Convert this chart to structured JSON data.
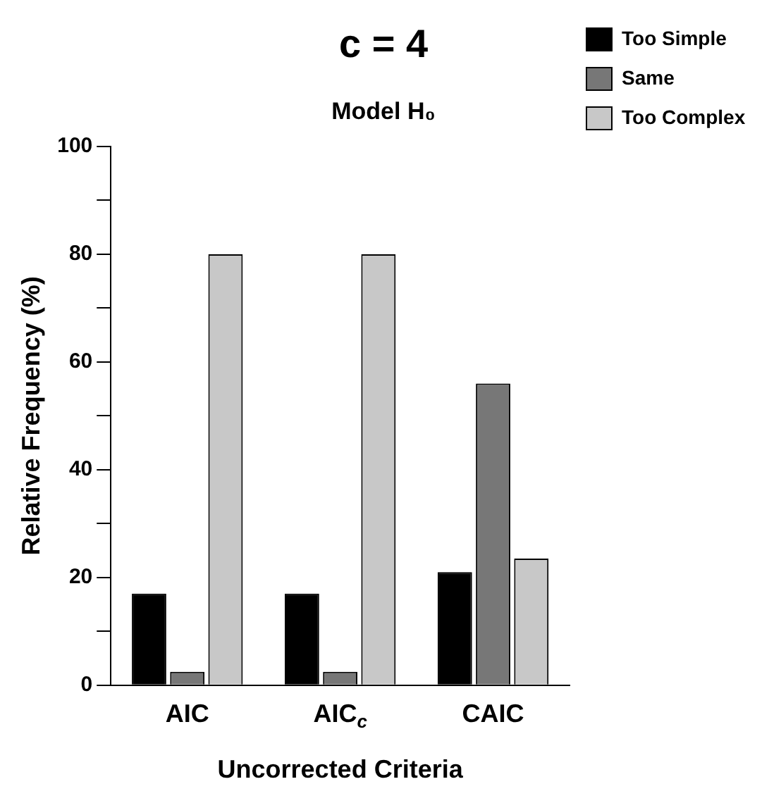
{
  "chart_data": {
    "type": "bar",
    "title": "c = 4",
    "subtitle": "Model H₀",
    "xlabel": "Uncorrected Criteria",
    "ylabel": "Relative Frequency (%)",
    "categories": [
      "AIC",
      "AIC$_{c}$",
      "CAIC"
    ],
    "series": [
      {
        "name": "Too Simple",
        "color": "#000000",
        "values": [
          17,
          17,
          21
        ]
      },
      {
        "name": "Same",
        "color": "#777777",
        "values": [
          2.5,
          2.5,
          56
        ]
      },
      {
        "name": "Too Complex",
        "color": "#c8c8c8",
        "values": [
          80,
          80,
          23.5
        ]
      }
    ],
    "ylim": [
      0,
      100
    ],
    "yticks": [
      0,
      {
        "value": 10,
        "label": null
      },
      20,
      {
        "value": 30,
        "label": null
      },
      40,
      {
        "value": 50,
        "label": null
      },
      60,
      {
        "value": 70,
        "label": null
      },
      80,
      {
        "value": 90,
        "label": null
      },
      100
    ],
    "grid": false,
    "legend": "top right"
  }
}
